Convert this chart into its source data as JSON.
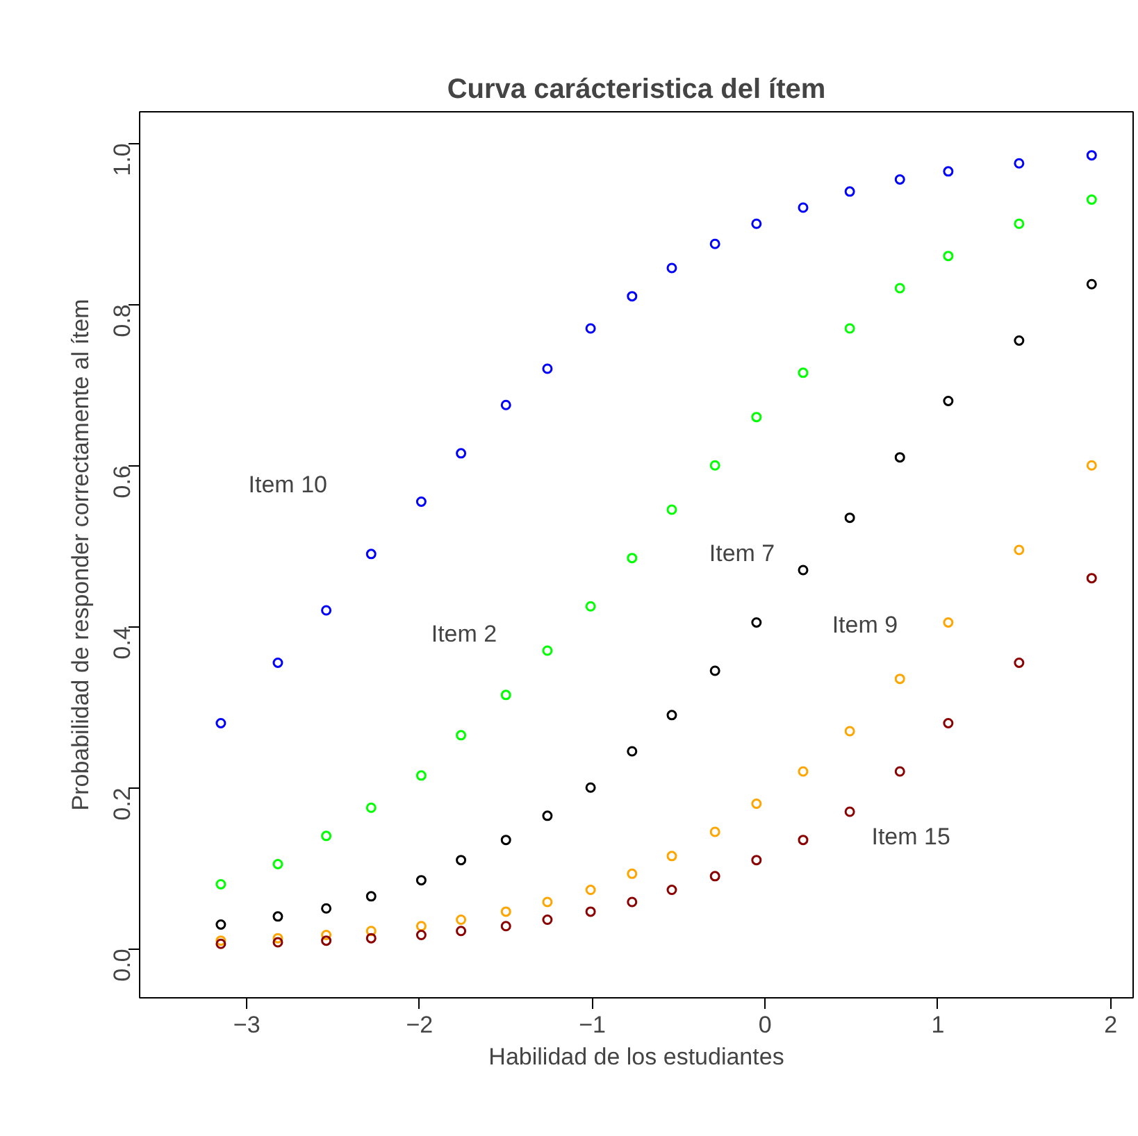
{
  "chart_data": {
    "type": "scatter",
    "title": "Curva carácteristica del ítem",
    "xlabel": "Habilidad de los estudiantes",
    "ylabel": "Probabilidad de responder correctamente al ítem",
    "x": [
      -3.15,
      -2.82,
      -2.54,
      -2.28,
      -1.99,
      -1.76,
      -1.5,
      -1.26,
      -1.01,
      -0.77,
      -0.54,
      -0.29,
      -0.05,
      0.22,
      0.49,
      0.78,
      1.06,
      1.47,
      1.89
    ],
    "series": [
      {
        "name": "Item 10",
        "color": "#0000ff",
        "values": [
          0.28,
          0.355,
          0.42,
          0.49,
          0.555,
          0.615,
          0.675,
          0.72,
          0.77,
          0.81,
          0.845,
          0.875,
          0.9,
          0.92,
          0.94,
          0.955,
          0.965,
          0.975,
          0.985
        ]
      },
      {
        "name": "Item 2",
        "color": "#00ff00",
        "values": [
          0.08,
          0.105,
          0.14,
          0.175,
          0.215,
          0.265,
          0.315,
          0.37,
          0.425,
          0.485,
          0.545,
          0.6,
          0.66,
          0.715,
          0.77,
          0.82,
          0.86,
          0.9,
          0.93
        ]
      },
      {
        "name": "Item 7",
        "color": "#000000",
        "values": [
          0.03,
          0.04,
          0.05,
          0.065,
          0.085,
          0.11,
          0.135,
          0.165,
          0.2,
          0.245,
          0.29,
          0.345,
          0.405,
          0.47,
          0.535,
          0.61,
          0.68,
          0.755,
          0.825
        ]
      },
      {
        "name": "Item 9",
        "color": "#ffa500",
        "values": [
          0.01,
          0.013,
          0.017,
          0.022,
          0.028,
          0.036,
          0.046,
          0.058,
          0.073,
          0.093,
          0.115,
          0.145,
          0.18,
          0.22,
          0.27,
          0.335,
          0.405,
          0.495,
          0.6
        ]
      },
      {
        "name": "Item 15",
        "color": "#8b0000",
        "values": [
          0.006,
          0.008,
          0.01,
          0.013,
          0.017,
          0.022,
          0.028,
          0.036,
          0.046,
          0.058,
          0.073,
          0.09,
          0.11,
          0.135,
          0.17,
          0.22,
          0.28,
          0.355,
          0.46
        ]
      }
    ],
    "xlim": [
      -3.62,
      2.13
    ],
    "ylim": [
      -0.061,
      1.039
    ],
    "xticks": [
      -3,
      -2,
      -1,
      0,
      1,
      2
    ],
    "yticks": [
      {
        "value": 0,
        "label": "0.0"
      },
      {
        "value": 0.2,
        "label": "0.2"
      },
      {
        "value": 0.4,
        "label": "0.4"
      },
      {
        "value": 0.6,
        "label": "0.6"
      },
      {
        "value": 0.8,
        "label": "0.8"
      },
      {
        "value": 1,
        "label": "1.0"
      }
    ],
    "marker": "circle",
    "grid": false,
    "legend": false
  }
}
